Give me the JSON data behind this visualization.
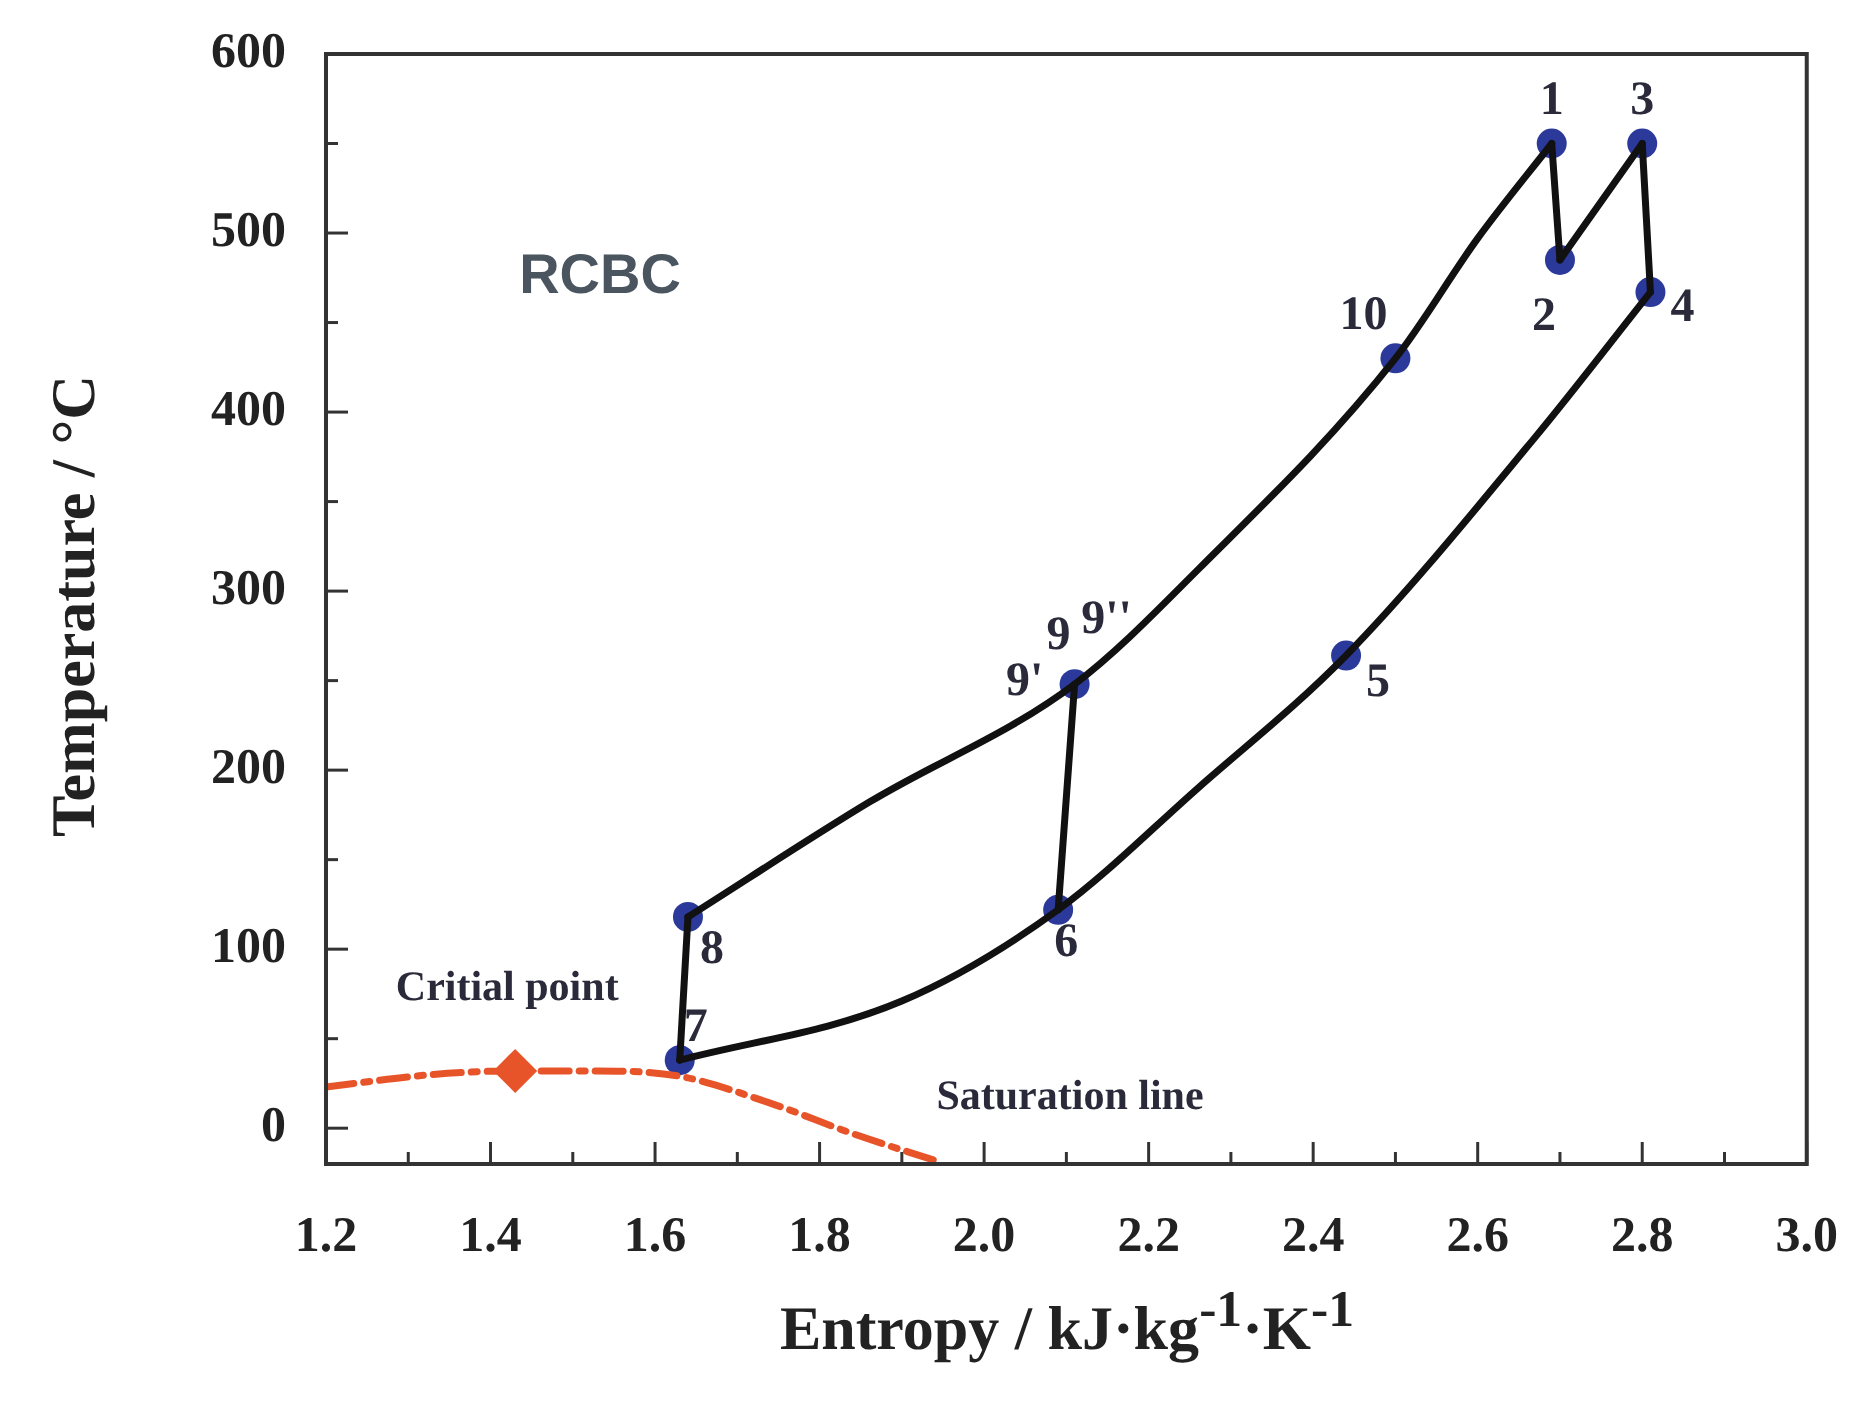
{
  "chart_data": {
    "type": "line",
    "title": "RCBC",
    "xlabel": "Entropy / kJ·kg$^{-1}$·K$^{-1}$",
    "ylabel": "Temperature / °C",
    "xlim": [
      1.2,
      3.0
    ],
    "xticks": [
      1.2,
      {
        "value": 1.3,
        "label": null
      },
      1.4,
      {
        "value": 1.5,
        "label": null
      },
      1.6,
      {
        "value": 1.7,
        "label": null
      },
      1.8,
      {
        "value": 1.9,
        "label": null
      },
      {
        "value": 2,
        "label": "2.0"
      },
      {
        "value": 2.1,
        "label": null
      },
      2.2,
      {
        "value": 2.3,
        "label": null
      },
      2.4,
      {
        "value": 2.5,
        "label": null
      },
      2.6,
      {
        "value": 2.7,
        "label": null
      },
      2.8,
      {
        "value": 2.9,
        "label": null
      },
      {
        "value": 3,
        "label": "3.0"
      }
    ],
    "ylim": [
      -20,
      600
    ],
    "yticks": [
      0,
      {
        "value": 50,
        "label": null
      },
      100,
      {
        "value": 150,
        "label": null
      },
      200,
      {
        "value": 250,
        "label": null
      },
      300,
      {
        "value": 350,
        "label": null
      },
      400,
      {
        "value": 450,
        "label": null
      },
      500,
      {
        "value": 550,
        "label": null
      },
      600
    ],
    "grid": false,
    "legend": false,
    "series": [
      {
        "type": "line",
        "color": "#111111",
        "marker": "none",
        "line_style": "solid",
        "x": [
          1.63,
          1.64
        ],
        "values": [
          38,
          118
        ]
      },
      {
        "type": "line",
        "color": "#111111",
        "marker": "none",
        "line_style": "solid",
        "x": [
          1.64,
          1.86,
          2.11,
          2.26,
          2.5,
          2.6,
          2.69
        ],
        "values": [
          118,
          182,
          248,
          312,
          430,
          497,
          550
        ]
      },
      {
        "type": "line",
        "color": "#111111",
        "marker": "none",
        "line_style": "solid",
        "x": [
          2.69,
          2.7
        ],
        "values": [
          550,
          485
        ]
      },
      {
        "type": "line",
        "color": "#111111",
        "marker": "none",
        "line_style": "solid",
        "x": [
          2.7,
          2.8
        ],
        "values": [
          485,
          550
        ]
      },
      {
        "type": "line",
        "color": "#111111",
        "marker": "none",
        "line_style": "solid",
        "x": [
          2.8,
          2.81
        ],
        "values": [
          550,
          467
        ]
      },
      {
        "type": "line",
        "color": "#111111",
        "marker": "none",
        "line_style": "solid",
        "x": [
          1.63,
          1.9,
          2.09,
          2.26,
          2.44,
          2.67,
          2.81
        ],
        "values": [
          38,
          71,
          122,
          190,
          264,
          386,
          467
        ]
      },
      {
        "type": "line",
        "color": "#111111",
        "marker": "none",
        "line_style": "solid",
        "x": [
          2.09,
          2.11
        ],
        "values": [
          122,
          248
        ]
      },
      {
        "type": "line",
        "color": "#e8542a",
        "marker": "none",
        "line_style": "dashed",
        "x": [
          1.2,
          1.33,
          1.43,
          1.53,
          1.63,
          1.74,
          1.84,
          1.94
        ],
        "values": [
          23,
          30,
          32,
          32,
          29,
          14,
          -3,
          -18
        ]
      },
      {
        "type": "scatter",
        "color": "#2b3a9a",
        "marker": "circle",
        "x": [
          2.69,
          2.7,
          2.8,
          2.81,
          2.44,
          2.09,
          1.63,
          1.64,
          2.11,
          2.5
        ],
        "values": [
          550,
          485,
          550,
          467,
          264,
          122,
          38,
          118,
          248,
          430
        ]
      },
      {
        "type": "scatter",
        "color": "#e8542a",
        "marker": "diamond",
        "x": [
          1.43
        ],
        "values": [
          32
        ]
      }
    ],
    "annotations": [
      {
        "text": "1",
        "x": 2.69,
        "y": 550
      },
      {
        "text": "2",
        "x": 2.7,
        "y": 485
      },
      {
        "text": "3",
        "x": 2.8,
        "y": 550
      },
      {
        "text": "4",
        "x": 2.81,
        "y": 467
      },
      {
        "text": "5",
        "x": 2.44,
        "y": 264
      },
      {
        "text": "6",
        "x": 2.09,
        "y": 122
      },
      {
        "text": "7",
        "x": 1.63,
        "y": 38
      },
      {
        "text": "8",
        "x": 1.64,
        "y": 118
      },
      {
        "text": "9'",
        "x": 2.11,
        "y": 248
      },
      {
        "text": "9",
        "x": 2.11,
        "y": 248
      },
      {
        "text": "9''",
        "x": 2.11,
        "y": 248
      },
      {
        "text": "10",
        "x": 2.5,
        "y": 430
      },
      {
        "text": "Critial point",
        "x": 1.43,
        "y": 32
      },
      "Saturation line"
    ]
  }
}
